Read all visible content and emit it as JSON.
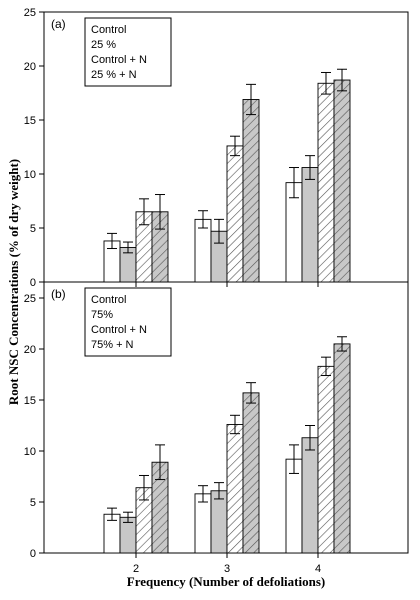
{
  "y_axis_title": "Root NSC Concentrations (% of dry weight)",
  "x_axis_title": "Frequency (Number of defoliations)",
  "colors": {
    "control": "#ffffff",
    "treatment": "#c8c8c8",
    "control_n_hatch": "#555555",
    "treatment_n_fill": "#c8c8c8",
    "stroke": "#000000"
  },
  "chart_data": [
    {
      "type": "bar",
      "panel_label": "(a)",
      "categories": [
        "2",
        "3",
        "4"
      ],
      "ylim": [
        0,
        25
      ],
      "yticks": [
        "0",
        "5",
        "10",
        "15",
        "20",
        "25"
      ],
      "legend": [
        "Control",
        "25 %",
        "Control + N",
        "25 % + N"
      ],
      "legend_position": "top-left",
      "grid": false,
      "series": [
        {
          "name": "Control",
          "style": "open",
          "values": [
            3.8,
            5.8,
            9.2
          ],
          "errors": [
            0.7,
            0.8,
            1.4
          ]
        },
        {
          "name": "25 %",
          "style": "gray",
          "values": [
            3.2,
            4.7,
            10.6
          ],
          "errors": [
            0.5,
            1.1,
            1.1
          ]
        },
        {
          "name": "Control + N",
          "style": "hatch-open",
          "values": [
            6.5,
            12.6,
            18.4
          ],
          "errors": [
            1.2,
            0.9,
            1.0
          ]
        },
        {
          "name": "25 % + N",
          "style": "hatch-gray",
          "values": [
            6.5,
            16.9,
            18.7
          ],
          "errors": [
            1.6,
            1.4,
            1.0
          ]
        }
      ]
    },
    {
      "type": "bar",
      "panel_label": "(b)",
      "categories": [
        "2",
        "3",
        "4"
      ],
      "ylim": [
        0,
        25
      ],
      "yticks": [
        "0",
        "5",
        "10",
        "15",
        "20",
        "25"
      ],
      "legend": [
        "Control",
        "75%",
        "Control + N",
        "75% + N"
      ],
      "legend_position": "top-left",
      "grid": false,
      "series": [
        {
          "name": "Control",
          "style": "open",
          "values": [
            3.8,
            5.8,
            9.2
          ],
          "errors": [
            0.6,
            0.8,
            1.4
          ]
        },
        {
          "name": "75%",
          "style": "gray",
          "values": [
            3.5,
            6.1,
            11.3
          ],
          "errors": [
            0.5,
            0.8,
            1.2
          ]
        },
        {
          "name": "Control + N",
          "style": "hatch-open",
          "values": [
            6.4,
            12.6,
            18.3
          ],
          "errors": [
            1.2,
            0.9,
            0.9
          ]
        },
        {
          "name": "75% + N",
          "style": "hatch-gray",
          "values": [
            8.9,
            15.7,
            20.5
          ],
          "errors": [
            1.7,
            1.0,
            0.7
          ]
        }
      ]
    }
  ]
}
